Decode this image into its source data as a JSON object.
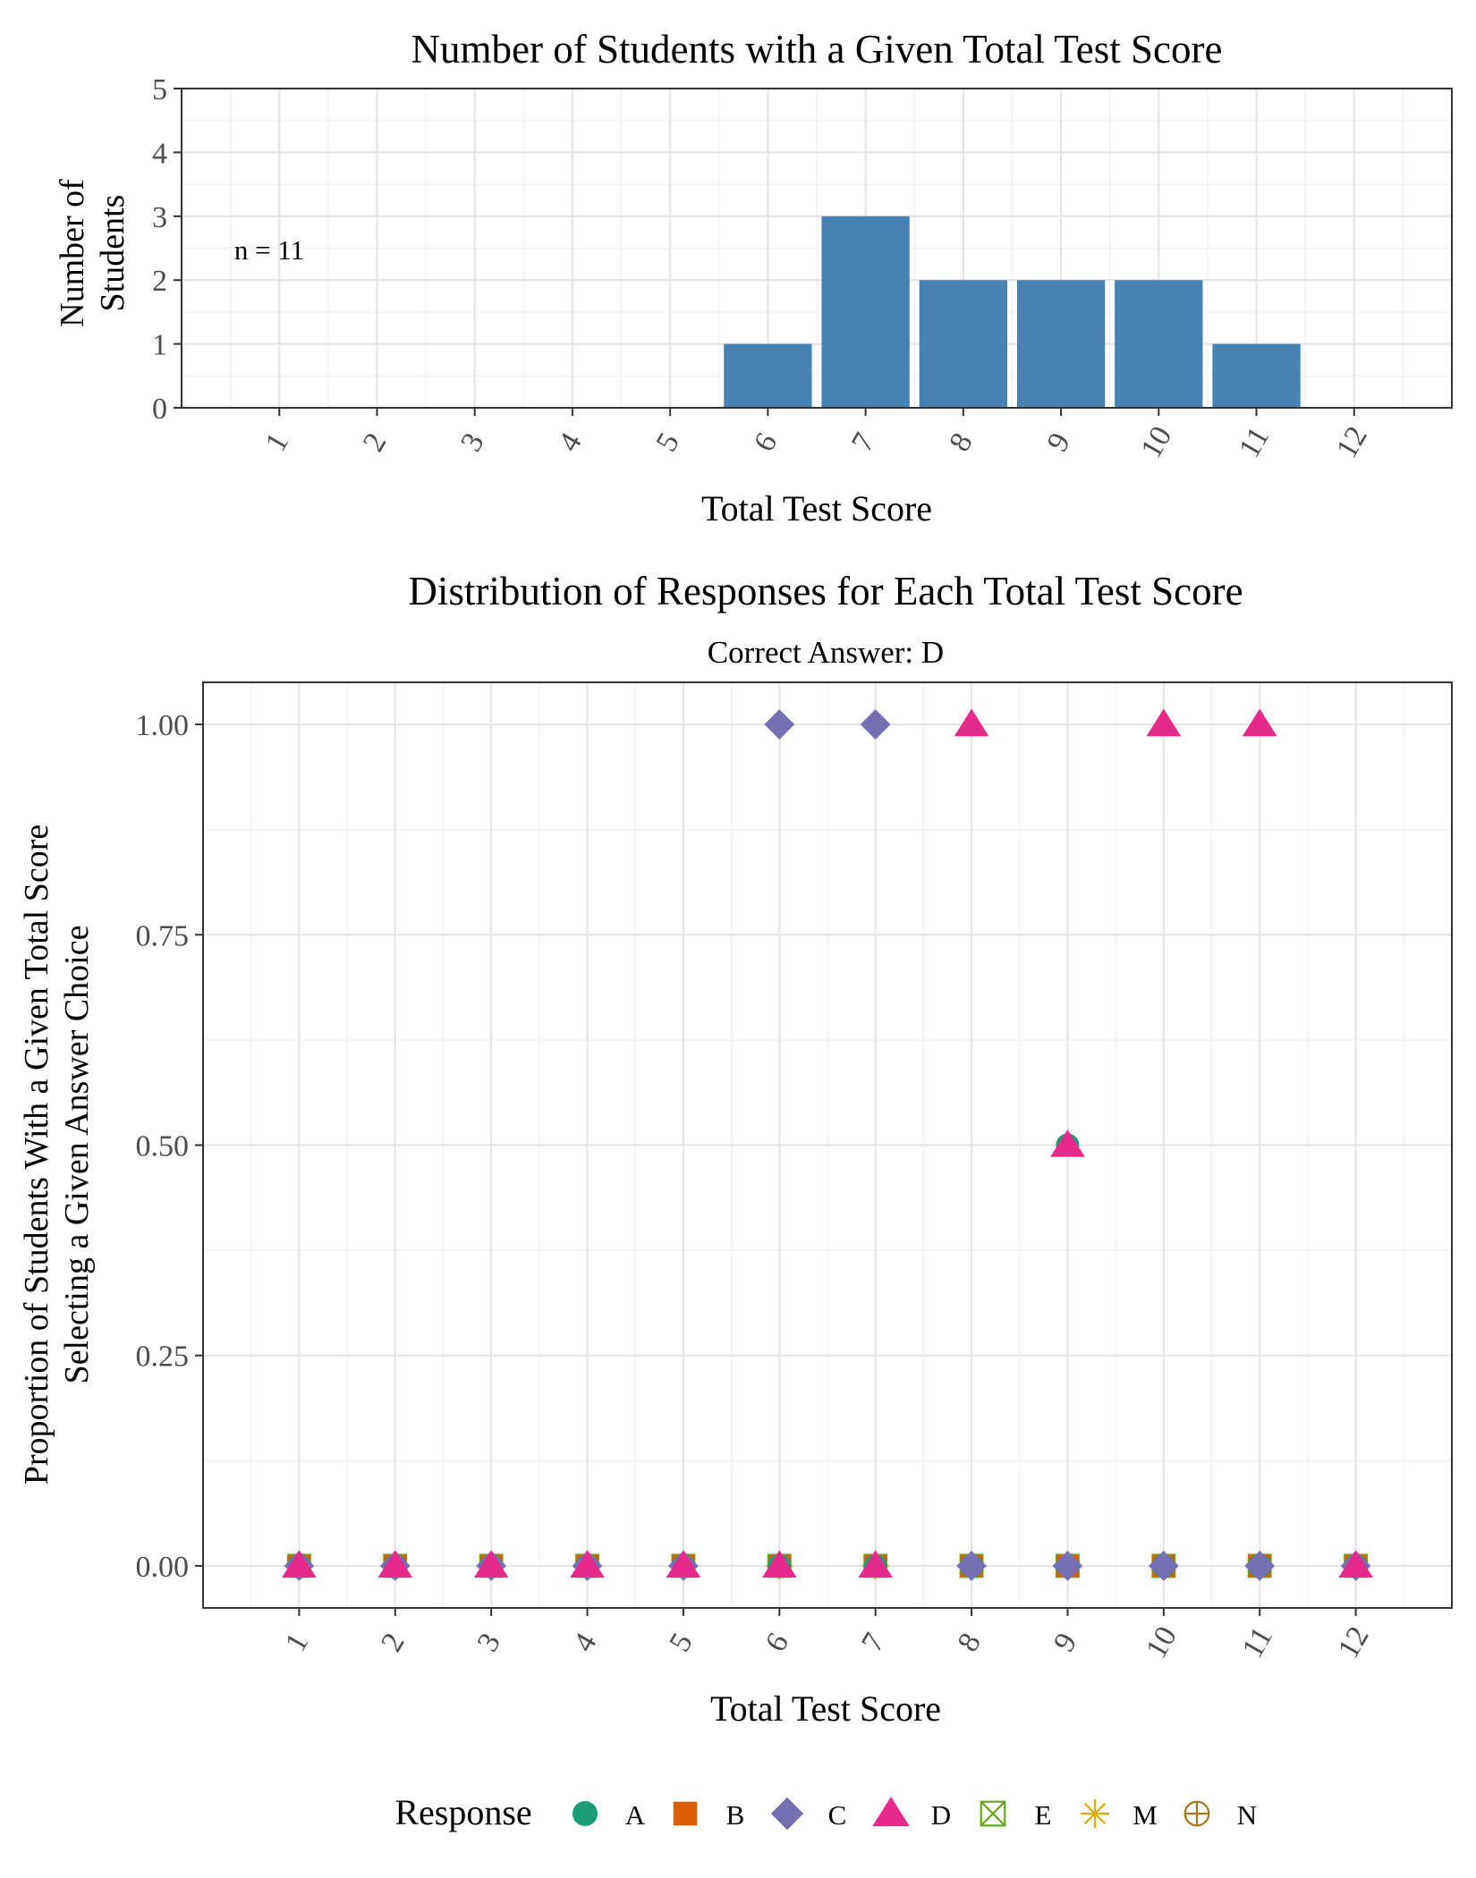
{
  "chart_data": [
    {
      "type": "bar",
      "title": "Number of Students with a Given Total Test Score",
      "xlabel": "Total Test Score",
      "ylabel_lines": [
        "Number of",
        "Students"
      ],
      "annotation": "n = 11",
      "categories": [
        "1",
        "2",
        "3",
        "4",
        "5",
        "6",
        "7",
        "8",
        "9",
        "10",
        "11",
        "12"
      ],
      "values": [
        0,
        0,
        0,
        0,
        0,
        1,
        3,
        2,
        2,
        2,
        1,
        0
      ],
      "yticks": [
        "0",
        "1",
        "2",
        "3",
        "4",
        "5"
      ],
      "ylim": [
        0,
        5
      ],
      "bar_color": "#4682B4",
      "grid": true
    },
    {
      "type": "scatter",
      "title": "Distribution of Responses for Each Total Test Score",
      "subtitle": "Correct Answer: D",
      "xlabel": "Total Test Score",
      "ylabel_lines": [
        "Proportion of Students With a Given Total Score",
        "Selecting a Given Answer Choice"
      ],
      "categories": [
        "1",
        "2",
        "3",
        "4",
        "5",
        "6",
        "7",
        "8",
        "9",
        "10",
        "11",
        "12"
      ],
      "yticks": [
        "0.00",
        "0.25",
        "0.50",
        "0.75",
        "1.00"
      ],
      "ylim": [
        0,
        1
      ],
      "grid": true,
      "legend_title": "Response",
      "legend_position": "bottom",
      "series": [
        {
          "name": "A",
          "shape": "circle",
          "color": "#1B9E77",
          "values": [
            0,
            0,
            0,
            0,
            0,
            0,
            0,
            0,
            0.5,
            0,
            0,
            0
          ]
        },
        {
          "name": "B",
          "shape": "square",
          "color": "#D95F02",
          "values": [
            0,
            0,
            0,
            0,
            0,
            0,
            0,
            0,
            0,
            0,
            0,
            0
          ]
        },
        {
          "name": "C",
          "shape": "diamond",
          "color": "#7570B3",
          "values": [
            0,
            0,
            0,
            0,
            0,
            1,
            1,
            0,
            0,
            0,
            0,
            0
          ]
        },
        {
          "name": "D",
          "shape": "triangle",
          "color": "#E7298A",
          "values": [
            0,
            0,
            0,
            0,
            0,
            0,
            0,
            1,
            0.5,
            1,
            1,
            0
          ]
        },
        {
          "name": "E",
          "shape": "square-x",
          "color": "#66A61E",
          "values": [
            0,
            0,
            0,
            0,
            0,
            0,
            0,
            0,
            0,
            0,
            0,
            0
          ]
        },
        {
          "name": "M",
          "shape": "asterisk",
          "color": "#E6AB02",
          "values": [
            0,
            0,
            0,
            0,
            0,
            0,
            0,
            0,
            0,
            0,
            0,
            0
          ]
        },
        {
          "name": "N",
          "shape": "circle-plus",
          "color": "#A6761D",
          "values": [
            0,
            0,
            0,
            0,
            0,
            0,
            0,
            0,
            0,
            0,
            0,
            0
          ]
        }
      ]
    }
  ]
}
